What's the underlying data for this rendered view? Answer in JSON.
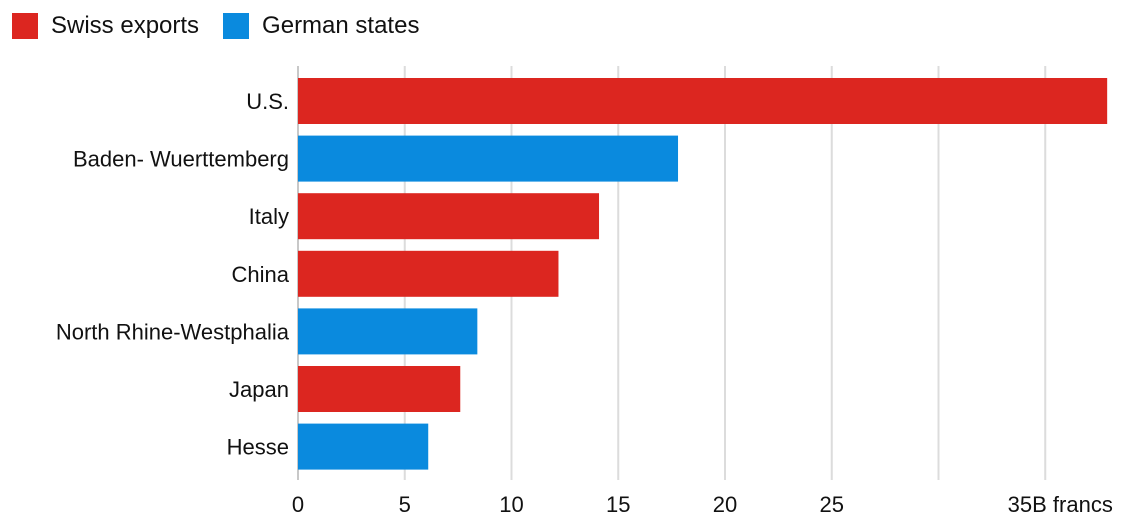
{
  "legend": {
    "items": [
      {
        "label": "Swiss exports",
        "color": "#dc2620"
      },
      {
        "label": "German states",
        "color": "#0a8ade"
      }
    ]
  },
  "chart_data": {
    "type": "bar",
    "orientation": "horizontal",
    "categories": [
      "U.S.",
      "Baden- Wuerttemberg",
      "Italy",
      "China",
      "North Rhine-Westphalia",
      "Japan",
      "Hesse"
    ],
    "values": [
      37.9,
      17.8,
      14.1,
      12.2,
      8.4,
      7.6,
      6.1
    ],
    "groups": [
      "Swiss exports",
      "German states",
      "Swiss exports",
      "Swiss exports",
      "German states",
      "Swiss exports",
      "German states"
    ],
    "xlim": [
      0,
      38
    ],
    "xticks": [
      0,
      5,
      10,
      15,
      20,
      25,
      30,
      35
    ],
    "xtick_labels": [
      "0",
      "5",
      "10",
      "15",
      "20",
      "25",
      "",
      "35B francs"
    ],
    "grid": true,
    "legend_position": "top-left"
  }
}
